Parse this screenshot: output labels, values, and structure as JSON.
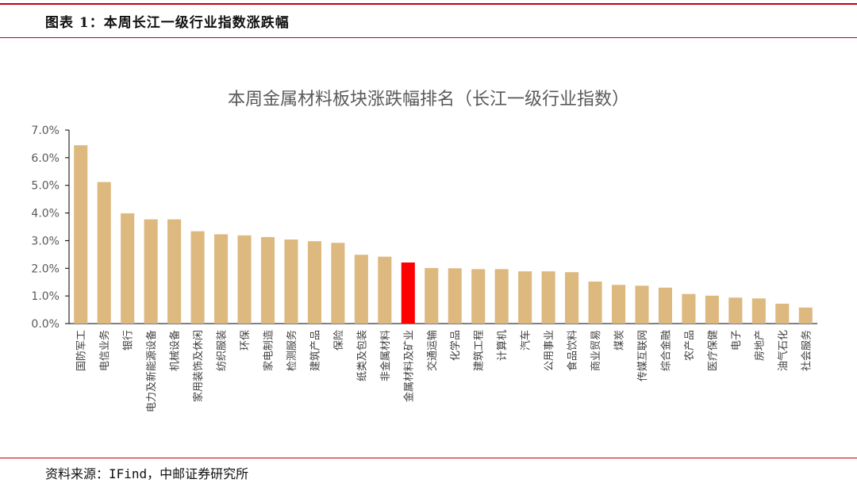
{
  "header": {
    "title": "图表 1：本周长江一级行业指数涨跌幅"
  },
  "footer": {
    "source": "资料来源：IFind，中邮证券研究所"
  },
  "colors": {
    "bar": "#DDB97F",
    "highlight": "#FF0000",
    "accent": "#C0000C",
    "axis": "#000000"
  },
  "chart_data": {
    "type": "bar",
    "title": "本周金属材料板块涨跌幅排名（长江一级行业指数）",
    "xlabel": "",
    "ylabel": "",
    "ylim": [
      0,
      7
    ],
    "yticks": [
      "0.0%",
      "1.0%",
      "2.0%",
      "3.0%",
      "4.0%",
      "5.0%",
      "6.0%",
      "7.0%"
    ],
    "grid": false,
    "highlight": "金属材料及矿业",
    "categories": [
      "国防军工",
      "电信业务",
      "银行",
      "电力及新能源设备",
      "机械设备",
      "家用装饰及休闲",
      "纺织服装",
      "环保",
      "家电制造",
      "检测服务",
      "建筑产品",
      "保险",
      "纸类及包装",
      "非金属材料",
      "金属材料及矿业",
      "交通运输",
      "化学品",
      "建筑工程",
      "计算机",
      "汽车",
      "公用事业",
      "食品饮料",
      "商业贸易",
      "煤炭",
      "传媒互联网",
      "综合金融",
      "农产品",
      "医疗保健",
      "电子",
      "房地产",
      "油气石化",
      "社会服务"
    ],
    "values": [
      6.45,
      5.12,
      3.99,
      3.77,
      3.77,
      3.34,
      3.23,
      3.19,
      3.13,
      3.04,
      2.98,
      2.92,
      2.49,
      2.42,
      2.21,
      2.01,
      2.0,
      1.97,
      1.97,
      1.89,
      1.89,
      1.86,
      1.52,
      1.4,
      1.37,
      1.3,
      1.07,
      1.01,
      0.94,
      0.91,
      0.72,
      0.58
    ]
  }
}
